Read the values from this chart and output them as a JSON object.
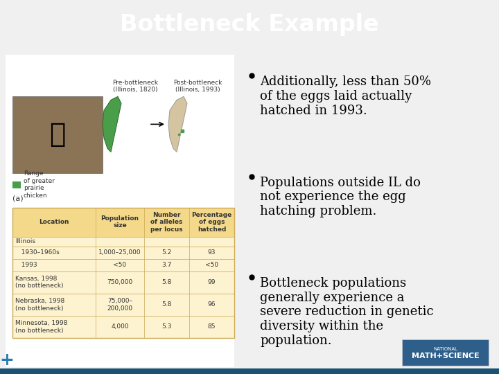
{
  "title": "Bottleneck Example",
  "title_bg_color": "#1a5276",
  "title_text_color": "#ffffff",
  "slide_bg_color": "#f0f0f0",
  "content_bg_color": "#ffffff",
  "bullet_points": [
    "Additionally, less than 50%\nof the eggs laid actually\nhatched in 1993.",
    "Populations outside IL do\nnot experience the egg\nhatching problem.",
    "Bottleneck populations\ngenerally experience a\nsevere reduction in genetic\ndiversity within the\npopulation."
  ],
  "bullet_color": "#000000",
  "bullet_fontsize": 13.5,
  "table_header": [
    "Location",
    "Population\nsize",
    "Number\nof alleles\nper locus",
    "Percentage\nof eggs\nhatched"
  ],
  "table_rows": [
    [
      "Illinois",
      "",
      "",
      ""
    ],
    [
      "   1930–1960s",
      "1,000–25,000",
      "5.2",
      "93"
    ],
    [
      "   1993",
      "<50",
      "3.7",
      "<50"
    ],
    [
      "Kansas, 1998\n(no bottleneck)",
      "750,000",
      "5.8",
      "99"
    ],
    [
      "Nebraska, 1998\n(no bottleneck)",
      "75,000–\n200,000",
      "5.8",
      "96"
    ],
    [
      "Minnesota, 1998\n(no bottleneck)",
      "4,000",
      "5.3",
      "85"
    ]
  ],
  "table_bg_color": "#fdf3d0",
  "table_header_bg": "#f5d98b",
  "logo_bg_color": "#2e5f8a",
  "logo_text": "MATH+SCIENCE"
}
